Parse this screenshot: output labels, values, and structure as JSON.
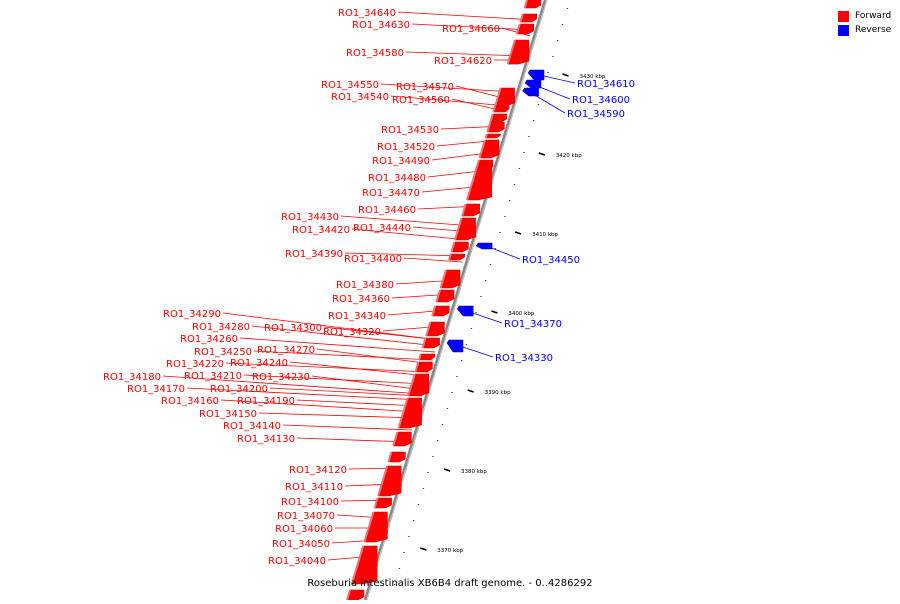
{
  "caption": "Roseburia intestinalis XB6B4 draft genome. - 0..4286292",
  "legend": [
    {
      "label": "Forward",
      "color": "#ff0000"
    },
    {
      "label": "Reverse",
      "color": "#0000ff"
    }
  ],
  "colors": {
    "forward": "#ff0000",
    "reverse": "#0000ff",
    "backbone": "#888888"
  },
  "scale_units": "kbp",
  "scale_marks": [
    {
      "kbp": 3370,
      "label": "3370 kbp"
    },
    {
      "kbp": 3380,
      "label": "3380 kbp"
    },
    {
      "kbp": 3390,
      "label": "3390 kbp"
    },
    {
      "kbp": 3400,
      "label": "3400 kbp"
    },
    {
      "kbp": 3410,
      "label": "3410 kbp"
    },
    {
      "kbp": 3420,
      "label": "3420 kbp"
    },
    {
      "kbp": 3430,
      "label": "3430 kbp"
    }
  ],
  "forward_genes": [
    "RO1_34640",
    "RO1_34630",
    "RO1_34660",
    "RO1_34580",
    "RO1_34620",
    "RO1_34550",
    "RO1_34570",
    "RO1_34540",
    "RO1_34560",
    "RO1_34530",
    "RO1_34520",
    "RO1_34490",
    "RO1_34480",
    "RO1_34470",
    "RO1_34460",
    "RO1_34430",
    "RO1_34440",
    "RO1_34420",
    "RO1_34390",
    "RO1_34400",
    "RO1_34380",
    "RO1_34360",
    "RO1_34340",
    "RO1_34290",
    "RO1_34320",
    "RO1_34280",
    "RO1_34300",
    "RO1_34260",
    "RO1_34250",
    "RO1_34270",
    "RO1_34220",
    "RO1_34240",
    "RO1_34180",
    "RO1_34210",
    "RO1_34230",
    "RO1_34170",
    "RO1_34200",
    "RO1_34160",
    "RO1_34190",
    "RO1_34150",
    "RO1_34140",
    "RO1_34130",
    "RO1_34120",
    "RO1_34110",
    "RO1_34100",
    "RO1_34070",
    "RO1_34060",
    "RO1_34050",
    "RO1_34040"
  ],
  "reverse_genes": [
    "RO1_34610",
    "RO1_34600",
    "RO1_34590",
    "RO1_34450",
    "RO1_34370",
    "RO1_34330"
  ]
}
